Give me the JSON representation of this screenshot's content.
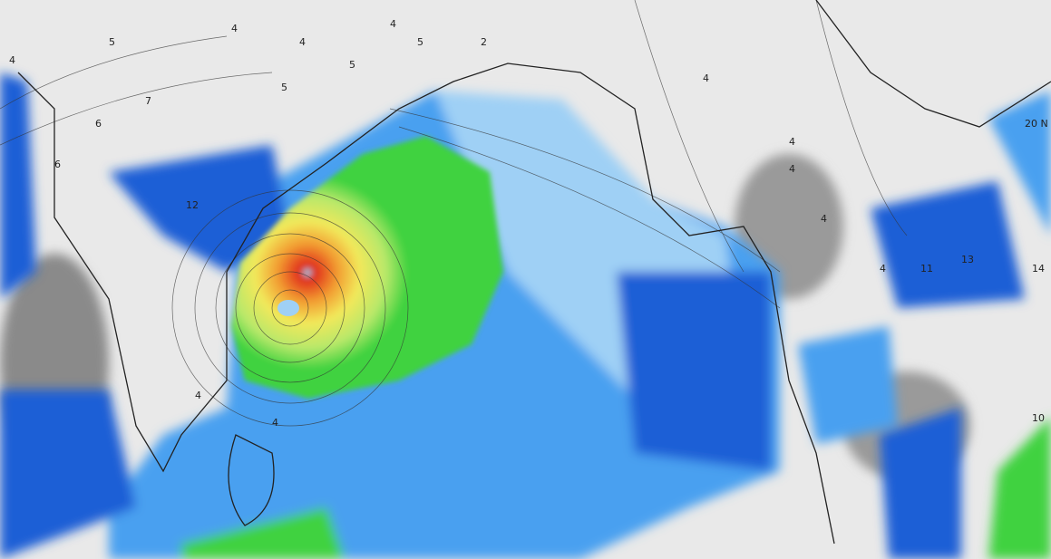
{
  "map": {
    "type": "weather model wind/pressure map",
    "region": "Bay of Bengal and South/Southeast Asia",
    "colors": {
      "land": "#e9e9e9",
      "shadow": "#8a8a8a",
      "ocean_low": "#1f5fd6",
      "ocean_mid": "#4aa0f0",
      "ocean_light": "#9fd0f5",
      "green": "#3fd23f",
      "yellow": "#f2e85a",
      "orange": "#f29a30",
      "red": "#e0301c"
    },
    "contour_labels": [
      "5",
      "4",
      "4",
      "4",
      "5",
      "7",
      "6",
      "6",
      "5",
      "5",
      "4",
      "4",
      "2",
      "4",
      "12",
      "4",
      "4",
      "4",
      "4",
      "4",
      "11",
      "13",
      "20 N",
      "10",
      "14"
    ]
  }
}
